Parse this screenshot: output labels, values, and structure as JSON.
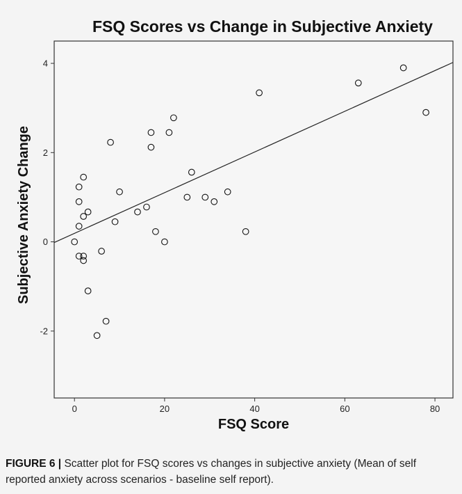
{
  "chart_data": {
    "type": "scatter",
    "title": "FSQ Scores vs Change in Subjective Anxiety",
    "xlabel": "FSQ Score",
    "ylabel": "Subjective Anxiety Change",
    "xlim": [
      -4.5,
      84
    ],
    "ylim": [
      -3.5,
      4.5
    ],
    "xticks": [
      0,
      20,
      40,
      60,
      80
    ],
    "yticks": [
      -2,
      0,
      2,
      4
    ],
    "grid": false,
    "legend": "none",
    "points": [
      {
        "x": 0,
        "y": 0.0
      },
      {
        "x": 1,
        "y": 1.23
      },
      {
        "x": 1,
        "y": 0.9
      },
      {
        "x": 1,
        "y": 0.35
      },
      {
        "x": 1,
        "y": -0.32
      },
      {
        "x": 2,
        "y": 1.45
      },
      {
        "x": 2,
        "y": 0.57
      },
      {
        "x": 2,
        "y": -0.32
      },
      {
        "x": 2,
        "y": -0.42
      },
      {
        "x": 3,
        "y": 0.67
      },
      {
        "x": 3,
        "y": -1.1
      },
      {
        "x": 5,
        "y": -2.1
      },
      {
        "x": 6,
        "y": -0.21
      },
      {
        "x": 7,
        "y": -1.78
      },
      {
        "x": 8,
        "y": 2.23
      },
      {
        "x": 9,
        "y": 0.45
      },
      {
        "x": 10,
        "y": 1.12
      },
      {
        "x": 14,
        "y": 0.67
      },
      {
        "x": 16,
        "y": 0.78
      },
      {
        "x": 17,
        "y": 2.45
      },
      {
        "x": 17,
        "y": 2.12
      },
      {
        "x": 18,
        "y": 0.23
      },
      {
        "x": 20,
        "y": 0.0
      },
      {
        "x": 21,
        "y": 2.45
      },
      {
        "x": 22,
        "y": 2.78
      },
      {
        "x": 25,
        "y": 1.0
      },
      {
        "x": 26,
        "y": 1.56
      },
      {
        "x": 29,
        "y": 1.0
      },
      {
        "x": 31,
        "y": 0.9
      },
      {
        "x": 34,
        "y": 1.12
      },
      {
        "x": 38,
        "y": 0.23
      },
      {
        "x": 41,
        "y": 3.34
      },
      {
        "x": 63,
        "y": 3.56
      },
      {
        "x": 73,
        "y": 3.9
      },
      {
        "x": 78,
        "y": 2.9
      }
    ],
    "fit_line": {
      "intercept": 0.19,
      "slope": 0.0456
    }
  },
  "caption": {
    "label": "FIGURE 6",
    "separator": "|",
    "text": "Scatter plot for FSQ scores vs changes in subjective anxiety (Mean of self reported anxiety across scenarios - baseline self report)."
  }
}
